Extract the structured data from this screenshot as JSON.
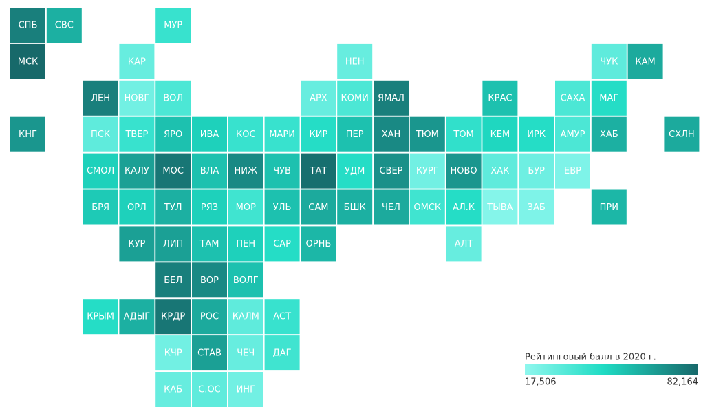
{
  "chart_data": {
    "type": "tilemap",
    "legend": {
      "title": "Рейтинговый балл в 2020 г.",
      "min": {
        "value": 17.506,
        "label": "17,506"
      },
      "max": {
        "value": 82.164,
        "label": "82,164"
      }
    },
    "colors": [
      "#8ff7ee",
      "#1fdcc4",
      "#17686a"
    ],
    "tiles": [
      {
        "label": "СПБ",
        "value": 75
      },
      {
        "label": "СВС",
        "value": 60
      },
      {
        "label": "МУР",
        "value": 40
      },
      {
        "label": "МСК",
        "value": 82
      },
      {
        "label": "КАР",
        "value": 28
      },
      {
        "label": "НЕН",
        "value": 28
      },
      {
        "label": "ЧУК",
        "value": 30
      },
      {
        "label": "КАМ",
        "value": 62
      },
      {
        "label": "ЛЕН",
        "value": 75
      },
      {
        "label": "НОВГ",
        "value": 25
      },
      {
        "label": "ВОЛ",
        "value": 35
      },
      {
        "label": "АРХ",
        "value": 28
      },
      {
        "label": "КОМИ",
        "value": 35
      },
      {
        "label": "ЯМАЛ",
        "value": 75
      },
      {
        "label": "КРАС",
        "value": 55
      },
      {
        "label": "САХА",
        "value": 35
      },
      {
        "label": "МАГ",
        "value": 45
      },
      {
        "label": "КНГ",
        "value": 68
      },
      {
        "label": "ПСК",
        "value": 30
      },
      {
        "label": "ТВЕР",
        "value": 40
      },
      {
        "label": "ЯРО",
        "value": 55
      },
      {
        "label": "ИВА",
        "value": 50
      },
      {
        "label": "КОС",
        "value": 40
      },
      {
        "label": "МАРИ",
        "value": 40
      },
      {
        "label": "КИР",
        "value": 45
      },
      {
        "label": "ПЕР",
        "value": 55
      },
      {
        "label": "ХАН",
        "value": 72
      },
      {
        "label": "ТЮМ",
        "value": 68
      },
      {
        "label": "ТОМ",
        "value": 42
      },
      {
        "label": "КЕМ",
        "value": 48
      },
      {
        "label": "ИРК",
        "value": 45
      },
      {
        "label": "АМУР",
        "value": 35
      },
      {
        "label": "ХАБ",
        "value": 60
      },
      {
        "label": "СХЛН",
        "value": 62
      },
      {
        "label": "СМОЛ",
        "value": 50
      },
      {
        "label": "КАЛУ",
        "value": 65
      },
      {
        "label": "МОС",
        "value": 78
      },
      {
        "label": "ВЛА",
        "value": 55
      },
      {
        "label": "НИЖ",
        "value": 72
      },
      {
        "label": "ЧУВ",
        "value": 55
      },
      {
        "label": "ТАТ",
        "value": 80
      },
      {
        "label": "УДМ",
        "value": 45
      },
      {
        "label": "СВЕР",
        "value": 70
      },
      {
        "label": "КУРГ",
        "value": 25
      },
      {
        "label": "НОВО",
        "value": 68
      },
      {
        "label": "ХАК",
        "value": 30
      },
      {
        "label": "БУР",
        "value": 26
      },
      {
        "label": "ЕВР",
        "value": 22
      },
      {
        "label": "БРЯ",
        "value": 52
      },
      {
        "label": "ОРЛ",
        "value": 50
      },
      {
        "label": "ТУЛ",
        "value": 60
      },
      {
        "label": "РЯЗ",
        "value": 50
      },
      {
        "label": "МОР",
        "value": 38
      },
      {
        "label": "УЛЬ",
        "value": 55
      },
      {
        "label": "САМ",
        "value": 62
      },
      {
        "label": "БШК",
        "value": 60
      },
      {
        "label": "ЧЕЛ",
        "value": 62
      },
      {
        "label": "ОМСК",
        "value": 38
      },
      {
        "label": "АЛ.К",
        "value": 45
      },
      {
        "label": "ТЫВА",
        "value": 20
      },
      {
        "label": "ЗАБ",
        "value": 22
      },
      {
        "label": "ПРИ",
        "value": 58
      },
      {
        "label": "КУР",
        "value": 65
      },
      {
        "label": "ЛИП",
        "value": 65
      },
      {
        "label": "ТАМ",
        "value": 55
      },
      {
        "label": "ПЕН",
        "value": 50
      },
      {
        "label": "САР",
        "value": 45
      },
      {
        "label": "ОРНБ",
        "value": 58
      },
      {
        "label": "АЛТ",
        "value": 28
      },
      {
        "label": "БЕЛ",
        "value": 75
      },
      {
        "label": "ВОР",
        "value": 72
      },
      {
        "label": "ВОЛГ",
        "value": 55
      },
      {
        "label": "КРЫМ",
        "value": 45
      },
      {
        "label": "АДЫГ",
        "value": 60
      },
      {
        "label": "КРДР",
        "value": 78
      },
      {
        "label": "РОС",
        "value": 62
      },
      {
        "label": "КАЛМ",
        "value": 30
      },
      {
        "label": "АСТ",
        "value": 40
      },
      {
        "label": "КЧР",
        "value": 25
      },
      {
        "label": "СТАВ",
        "value": 65
      },
      {
        "label": "ЧЕЧ",
        "value": 28
      },
      {
        "label": "ДАГ",
        "value": 38
      },
      {
        "label": "КАБ",
        "value": 28
      },
      {
        "label": "С.ОС",
        "value": 30
      },
      {
        "label": "ИНГ",
        "value": 25
      }
    ]
  }
}
